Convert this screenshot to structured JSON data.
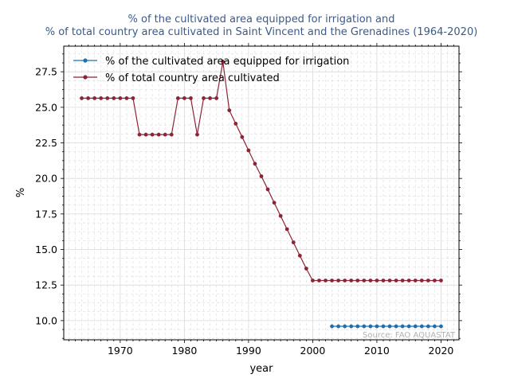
{
  "chart_data": {
    "type": "line",
    "title_line1": "% of the cultivated area equipped for irrigation and",
    "title_line2": "% of total country area cultivated in Saint Vincent and the Grenadines (1964-2020)",
    "xlabel": "year",
    "ylabel": "%",
    "xlim": [
      1961.2,
      2022.8
    ],
    "ylim": [
      8.65,
      29.3
    ],
    "x_ticks": [
      1970,
      1980,
      1990,
      2000,
      2010,
      2020
    ],
    "y_ticks": [
      10.0,
      12.5,
      15.0,
      17.5,
      20.0,
      22.5,
      25.0,
      27.5
    ],
    "grid": true,
    "legend_position": "upper-left",
    "source_note": "Source: FAO AQUASTAT",
    "colors": {
      "irrigation": "#1f6fae",
      "cultivated": "#8b2535",
      "grid": "#d9d9d9",
      "title": "#3a5a8c",
      "source": "#b3b3b3"
    },
    "series": [
      {
        "name": "% of the cultivated area equipped for irrigation",
        "color": "#1f6fae",
        "x": [
          2003,
          2004,
          2005,
          2006,
          2007,
          2008,
          2009,
          2010,
          2011,
          2012,
          2013,
          2014,
          2015,
          2016,
          2017,
          2018,
          2019,
          2020
        ],
        "values": [
          9.6,
          9.6,
          9.6,
          9.6,
          9.6,
          9.6,
          9.6,
          9.6,
          9.6,
          9.6,
          9.6,
          9.6,
          9.6,
          9.6,
          9.6,
          9.6,
          9.6,
          9.6
        ]
      },
      {
        "name": "% of total country area cultivated",
        "color": "#8b2535",
        "x": [
          1964,
          1965,
          1966,
          1967,
          1968,
          1969,
          1970,
          1971,
          1972,
          1973,
          1974,
          1975,
          1976,
          1977,
          1978,
          1979,
          1980,
          1981,
          1982,
          1983,
          1984,
          1985,
          1986,
          1987,
          1988,
          1989,
          1990,
          1991,
          1992,
          1993,
          1994,
          1995,
          1996,
          1997,
          1998,
          1999,
          2000,
          2001,
          2002,
          2003,
          2004,
          2005,
          2006,
          2007,
          2008,
          2009,
          2010,
          2011,
          2012,
          2013,
          2014,
          2015,
          2016,
          2017,
          2018,
          2019,
          2020
        ],
        "values": [
          25.64,
          25.64,
          25.64,
          25.64,
          25.64,
          25.64,
          25.64,
          25.64,
          25.64,
          23.08,
          23.08,
          23.08,
          23.08,
          23.08,
          23.08,
          25.64,
          25.64,
          25.64,
          23.08,
          25.64,
          25.64,
          25.64,
          28.21,
          24.79,
          23.85,
          22.91,
          21.97,
          21.03,
          20.15,
          19.23,
          18.29,
          17.36,
          16.43,
          15.5,
          14.57,
          13.66,
          12.82,
          12.82,
          12.82,
          12.82,
          12.82,
          12.82,
          12.82,
          12.82,
          12.82,
          12.82,
          12.82,
          12.82,
          12.82,
          12.82,
          12.82,
          12.82,
          12.82,
          12.82,
          12.82,
          12.82,
          12.82
        ]
      }
    ]
  }
}
